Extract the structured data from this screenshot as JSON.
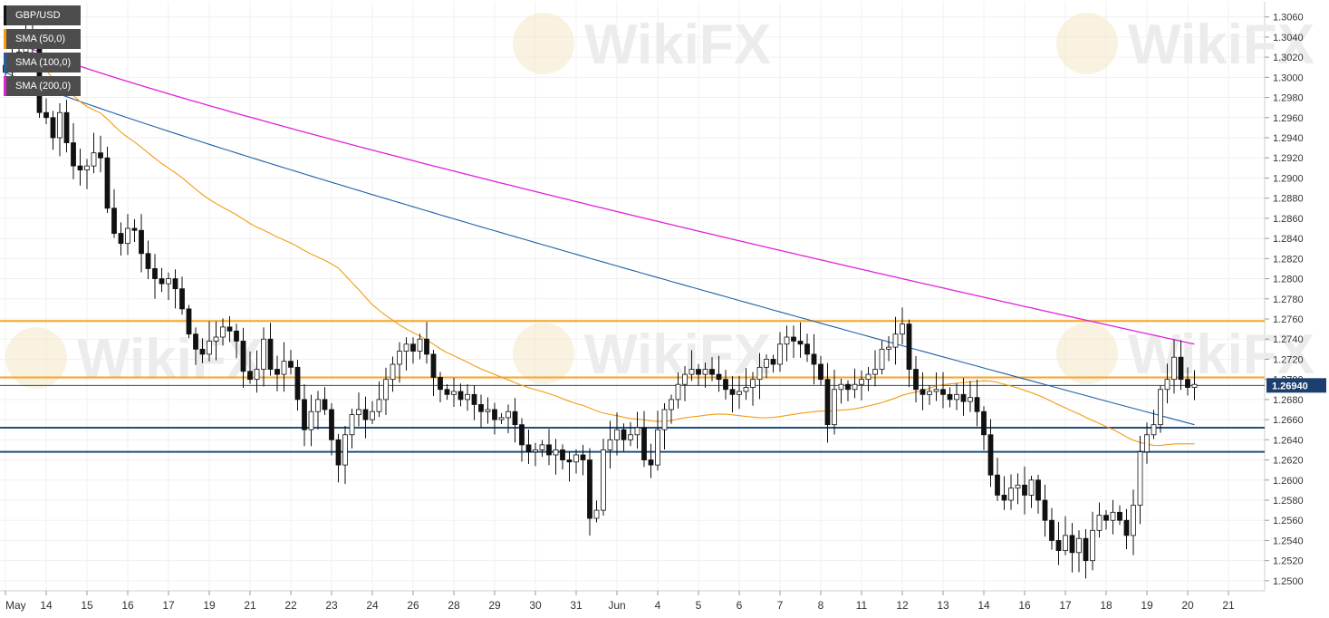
{
  "legend": [
    {
      "label": "GBP/USD",
      "color": "#111111"
    },
    {
      "label": "SMA (50,0)",
      "color": "#f39c12"
    },
    {
      "label": "SMA (100,0)",
      "color": "#1f5fa8"
    },
    {
      "label": "SMA (200,0)",
      "color": "#e020d8"
    }
  ],
  "watermark": "WikiFX",
  "colors": {
    "background": "#ffffff",
    "grid": "#f0f0f0",
    "sma50": "#f39c12",
    "sma100": "#1f5fa8",
    "sma200": "#e020d8",
    "resistance": "#f5a623",
    "support": "#1d4f80",
    "price_line": "#1d4f80",
    "price_label_bg": "#1d3f6e"
  },
  "chart_data": {
    "type": "candlestick",
    "symbol": "GBP/USD",
    "last_price": "1.26940",
    "y_ticks": [
      "1.2500",
      "1.2520",
      "1.2540",
      "1.2560",
      "1.2580",
      "1.2600",
      "1.2620",
      "1.2640",
      "1.2660",
      "1.2680",
      "1.2700",
      "1.2720",
      "1.2740",
      "1.2760",
      "1.2780",
      "1.2800",
      "1.2820",
      "1.2840",
      "1.2860",
      "1.2880",
      "1.2900",
      "1.2920",
      "1.2940",
      "1.2960",
      "1.2980",
      "1.3000",
      "1.3020",
      "1.3040",
      "1.3060"
    ],
    "ylim": [
      1.249,
      1.3075
    ],
    "x_labels": [
      {
        "label": "May",
        "index": 0
      },
      {
        "label": "14",
        "index": 6
      },
      {
        "label": "15",
        "index": 12
      },
      {
        "label": "16",
        "index": 18
      },
      {
        "label": "17",
        "index": 24
      },
      {
        "label": "19",
        "index": 30
      },
      {
        "label": "21",
        "index": 36
      },
      {
        "label": "22",
        "index": 42
      },
      {
        "label": "23",
        "index": 48
      },
      {
        "label": "24",
        "index": 54
      },
      {
        "label": "26",
        "index": 60
      },
      {
        "label": "28",
        "index": 66
      },
      {
        "label": "29",
        "index": 72
      },
      {
        "label": "30",
        "index": 78
      },
      {
        "label": "31",
        "index": 84
      },
      {
        "label": "Jun",
        "index": 90
      },
      {
        "label": "4",
        "index": 96
      },
      {
        "label": "5",
        "index": 102
      },
      {
        "label": "6",
        "index": 108
      },
      {
        "label": "7",
        "index": 114
      },
      {
        "label": "8",
        "index": 120
      },
      {
        "label": "11",
        "index": 126
      },
      {
        "label": "12",
        "index": 132
      },
      {
        "label": "13",
        "index": 138
      },
      {
        "label": "14",
        "index": 144
      },
      {
        "label": "16",
        "index": 150
      },
      {
        "label": "17",
        "index": 156
      },
      {
        "label": "18",
        "index": 162
      },
      {
        "label": "19",
        "index": 168
      },
      {
        "label": "20",
        "index": 174
      },
      {
        "label": "21",
        "index": 180
      }
    ],
    "horizontal_levels": [
      {
        "value": 1.2758,
        "kind": "resistance"
      },
      {
        "value": 1.2702,
        "kind": "resistance"
      },
      {
        "value": 1.2652,
        "kind": "support"
      },
      {
        "value": 1.2628,
        "kind": "support"
      }
    ],
    "closes": [
      1.3005,
      1.302,
      1.3025,
      1.3045,
      1.303,
      1.2965,
      1.296,
      1.294,
      1.2965,
      1.2935,
      1.2912,
      1.2908,
      1.2912,
      1.2925,
      1.292,
      1.287,
      1.2845,
      1.2835,
      1.285,
      1.2848,
      1.2825,
      1.281,
      1.28,
      1.2795,
      1.28,
      1.279,
      1.277,
      1.2745,
      1.273,
      1.2725,
      1.2738,
      1.2742,
      1.2752,
      1.2748,
      1.2738,
      1.2708,
      1.27,
      1.271,
      1.274,
      1.271,
      1.2705,
      1.2718,
      1.2712,
      1.268,
      1.265,
      1.2668,
      1.268,
      1.267,
      1.264,
      1.2615,
      1.2645,
      1.2665,
      1.267,
      1.266,
      1.2668,
      1.268,
      1.27,
      1.2715,
      1.2728,
      1.2735,
      1.2728,
      1.274,
      1.2725,
      1.2702,
      1.269,
      1.2685,
      1.2688,
      1.268,
      1.2685,
      1.2675,
      1.2668,
      1.267,
      1.266,
      1.2662,
      1.2668,
      1.2655,
      1.2635,
      1.2628,
      1.263,
      1.2635,
      1.2625,
      1.263,
      1.262,
      1.2618,
      1.2625,
      1.262,
      1.2562,
      1.257,
      1.263,
      1.264,
      1.265,
      1.264,
      1.2645,
      1.2652,
      1.262,
      1.2615,
      1.265,
      1.267,
      1.268,
      1.2695,
      1.2705,
      1.271,
      1.2705,
      1.271,
      1.2705,
      1.27,
      1.269,
      1.2685,
      1.2688,
      1.2692,
      1.27,
      1.2712,
      1.272,
      1.2715,
      1.2735,
      1.2742,
      1.2738,
      1.2735,
      1.2725,
      1.2715,
      1.27,
      1.2655,
      1.269,
      1.2695,
      1.269,
      1.2695,
      1.27,
      1.2705,
      1.271,
      1.273,
      1.2732,
      1.2745,
      1.2755,
      1.271,
      1.269,
      1.2685,
      1.2688,
      1.269,
      1.2685,
      1.268,
      1.2685,
      1.2678,
      1.2682,
      1.2668,
      1.2645,
      1.2605,
      1.2585,
      1.258,
      1.2592,
      1.2595,
      1.2585,
      1.26,
      1.258,
      1.256,
      1.254,
      1.253,
      1.2545,
      1.2528,
      1.2542,
      1.252,
      1.255,
      1.2565,
      1.256,
      1.2568,
      1.256,
      1.2545,
      1.2575,
      1.2628,
      1.2645,
      1.2655,
      1.269,
      1.27,
      1.2722,
      1.27,
      1.2692,
      1.2695
    ]
  }
}
